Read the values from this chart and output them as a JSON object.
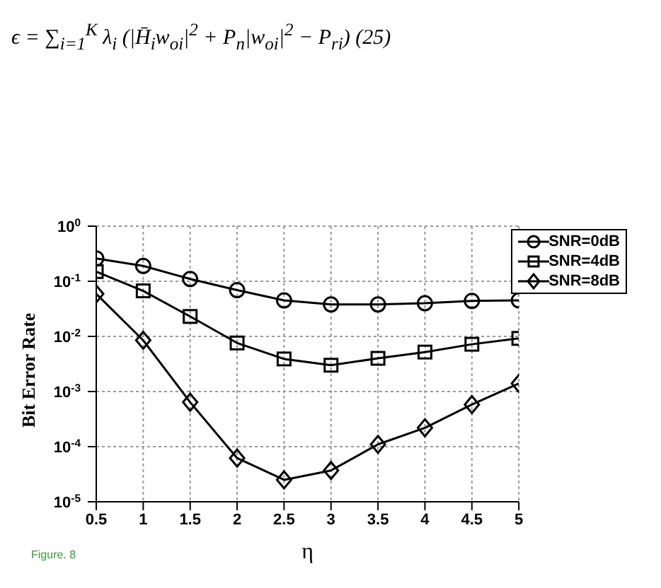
{
  "chart_data": {
    "type": "line",
    "xlabel": "η",
    "ylabel": "Bit Error Rate",
    "annotations": [
      "ϵ = ∑$_{i=1}$$^{K}$ λ$_{i}$ (|H̄$_{i}$w$_{oi}$|$^{2}$ + P$_{n}$|w$_{oi}$|$^{2}$ − P$_{ri}$)     (25)",
      "Figure. 8"
    ],
    "x": [
      0.5,
      1,
      1.5,
      2,
      2.5,
      3,
      3.5,
      4,
      4.5,
      5
    ],
    "series": [
      {
        "name": "SNR=0dB",
        "color": "#000000",
        "marker": "circle",
        "values": [
          0.26,
          0.19,
          0.11,
          0.069,
          0.045,
          0.038,
          0.038,
          0.04,
          0.044,
          0.045
        ]
      },
      {
        "name": "SNR=4dB",
        "color": "#000000",
        "marker": "square",
        "values": [
          0.15,
          0.067,
          0.023,
          0.0076,
          0.0039,
          0.003,
          0.004,
          0.0052,
          0.0072,
          0.0092
        ]
      },
      {
        "name": "SNR=8dB",
        "color": "#000000",
        "marker": "diamond",
        "values": [
          0.059,
          0.0085,
          0.00064,
          6.2e-05,
          2.5e-05,
          3.7e-05,
          0.00011,
          0.00022,
          0.00058,
          0.0014
        ]
      }
    ],
    "log": "y",
    "xlim": [
      0.5,
      5
    ],
    "xticks": [
      0.5,
      1,
      1.5,
      2,
      2.5,
      3,
      3.5,
      4,
      4.5,
      5
    ],
    "ylim": [
      1e-05,
      1
    ],
    "yticks": [
      {
        "value": 1e-05,
        "label": "10$^{-5}$"
      },
      {
        "value": 0.0001,
        "label": "10$^{-4}$"
      },
      {
        "value": 0.001,
        "label": "10$^{-3}$"
      },
      {
        "value": 0.01,
        "label": "10$^{-2}$"
      },
      {
        "value": 0.1,
        "label": "10$^{-1}$"
      },
      {
        "value": 1,
        "label": "10$^{0}$"
      }
    ],
    "grid": true,
    "legend": "top right",
    "line_style": "solid"
  }
}
